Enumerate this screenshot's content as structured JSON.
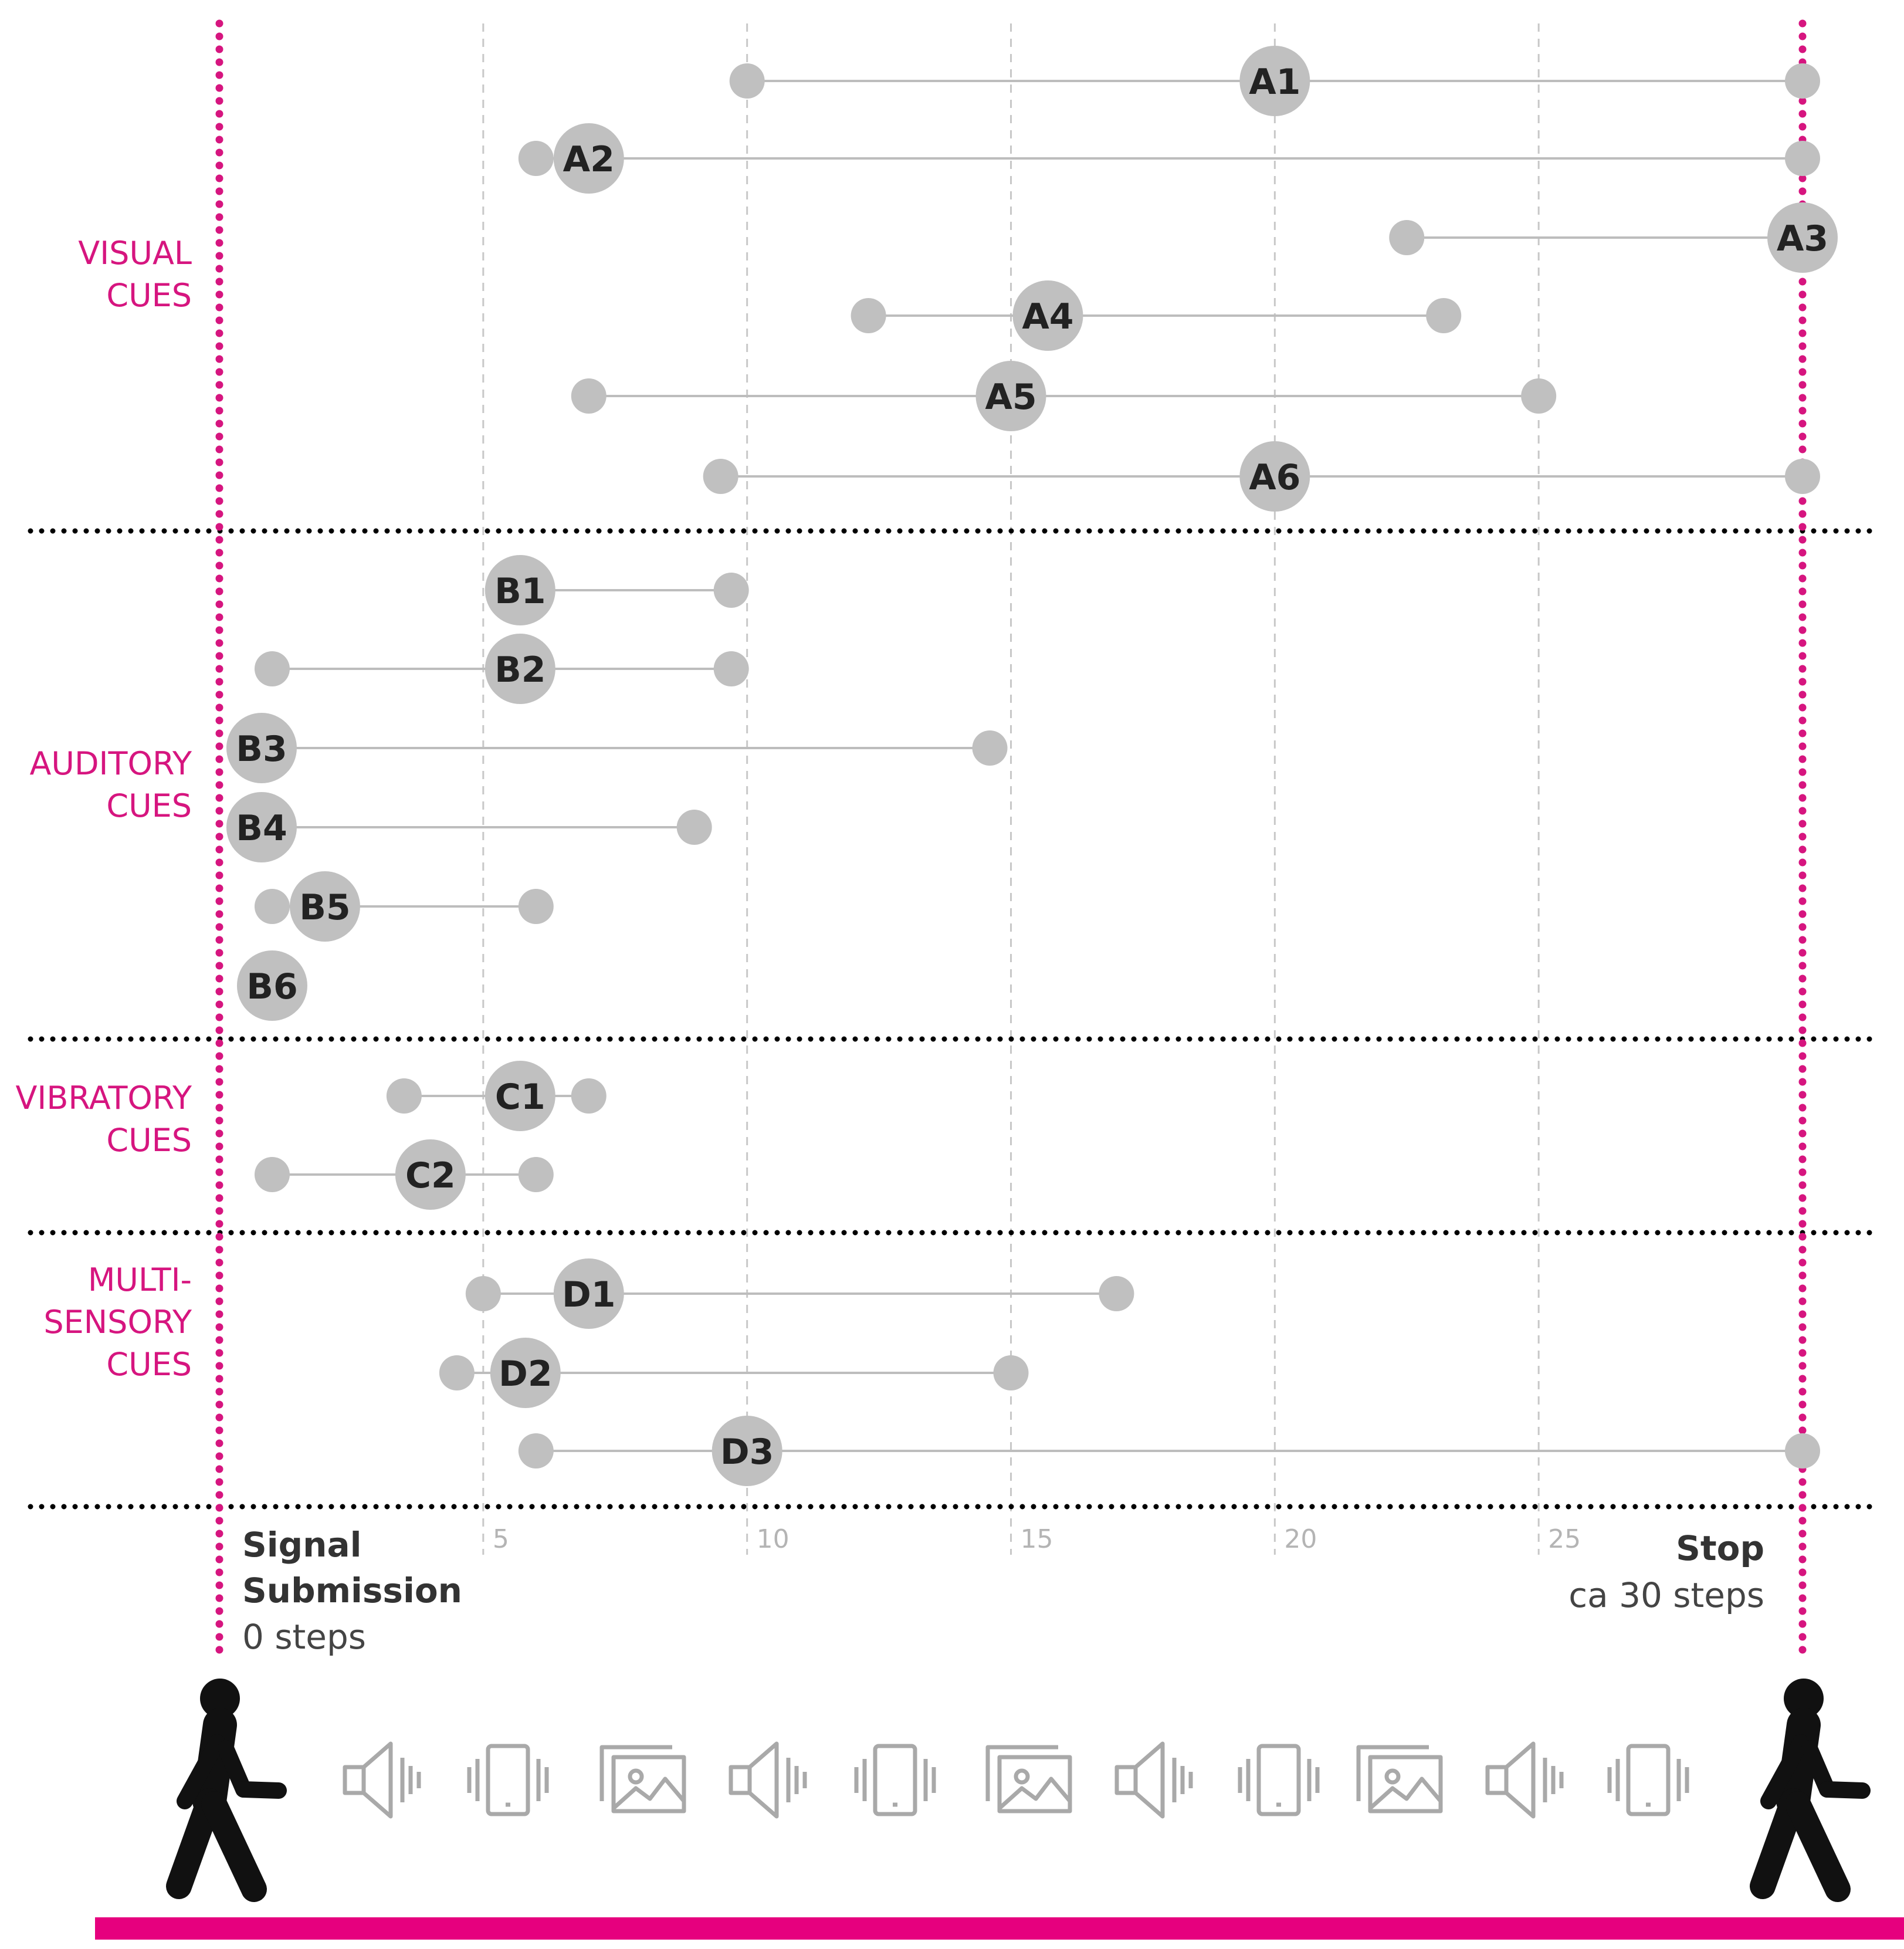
{
  "chart_data": {
    "type": "dumbbell",
    "title": "",
    "xlabel": "steps",
    "xlim": [
      0,
      30
    ],
    "x_ticks": [
      5,
      10,
      15,
      20,
      25
    ],
    "start": {
      "line1": "Signal",
      "line2": "Submission",
      "value_label": "0 steps",
      "value": 0
    },
    "stop": {
      "label": "Stop",
      "value_label": "ca 30 steps",
      "value": 30
    },
    "groups": [
      {
        "name": "visual",
        "label_lines": [
          "VISUAL",
          "CUES"
        ]
      },
      {
        "name": "auditory",
        "label_lines": [
          "AUDITORY",
          "CUES"
        ]
      },
      {
        "name": "vibratory",
        "label_lines": [
          "VIBRATORY",
          "CUES"
        ]
      },
      {
        "name": "multisensory",
        "label_lines": [
          "MULTI-",
          "SENSORY",
          "CUES"
        ]
      }
    ],
    "series": [
      {
        "id": "A1",
        "group": "visual",
        "min": 10,
        "median": 20,
        "max": 30
      },
      {
        "id": "A2",
        "group": "visual",
        "min": 6,
        "median": 7,
        "max": 30
      },
      {
        "id": "A3",
        "group": "visual",
        "min": 22.5,
        "median": 30,
        "max": 30
      },
      {
        "id": "A4",
        "group": "visual",
        "min": 12.3,
        "median": 15.7,
        "max": 23.2
      },
      {
        "id": "A5",
        "group": "visual",
        "min": 7,
        "median": 15,
        "max": 25
      },
      {
        "id": "A6",
        "group": "visual",
        "min": 9.5,
        "median": 20,
        "max": 30
      },
      {
        "id": "B1",
        "group": "auditory",
        "min": 5.7,
        "median": 5.7,
        "max": 9.7
      },
      {
        "id": "B2",
        "group": "auditory",
        "min": 1,
        "median": 5.7,
        "max": 9.7
      },
      {
        "id": "B3",
        "group": "auditory",
        "min": 0.8,
        "median": 0.8,
        "max": 14.6
      },
      {
        "id": "B4",
        "group": "auditory",
        "min": 0.8,
        "median": 0.8,
        "max": 9
      },
      {
        "id": "B5",
        "group": "auditory",
        "min": 1,
        "median": 2,
        "max": 6
      },
      {
        "id": "B6",
        "group": "auditory",
        "min": 1,
        "median": 1,
        "max": 1
      },
      {
        "id": "C1",
        "group": "vibratory",
        "min": 3.5,
        "median": 5.7,
        "max": 7
      },
      {
        "id": "C2",
        "group": "vibratory",
        "min": 1,
        "median": 4,
        "max": 6
      },
      {
        "id": "D1",
        "group": "multisensory",
        "min": 5,
        "median": 7,
        "max": 17
      },
      {
        "id": "D2",
        "group": "multisensory",
        "min": 4.5,
        "median": 5.8,
        "max": 15
      },
      {
        "id": "D3",
        "group": "multisensory",
        "min": 6,
        "median": 10,
        "max": 30
      }
    ]
  },
  "icon_strip": [
    "walker-start-icon",
    "speaker-icon",
    "phone-vibrate-icon",
    "image-icon",
    "speaker-icon",
    "phone-vibrate-icon",
    "image-icon",
    "speaker-icon",
    "phone-vibrate-icon",
    "image-icon",
    "speaker-icon",
    "phone-vibrate-icon",
    "walker-stop-icon"
  ],
  "colors": {
    "accent": "#d6157f",
    "marker": "#c0c0c0",
    "connector": "#bdbdbd",
    "grid": "#c8c8c8",
    "separator": "#000000",
    "icon": "#a9a9a9",
    "walker": "#111111"
  }
}
